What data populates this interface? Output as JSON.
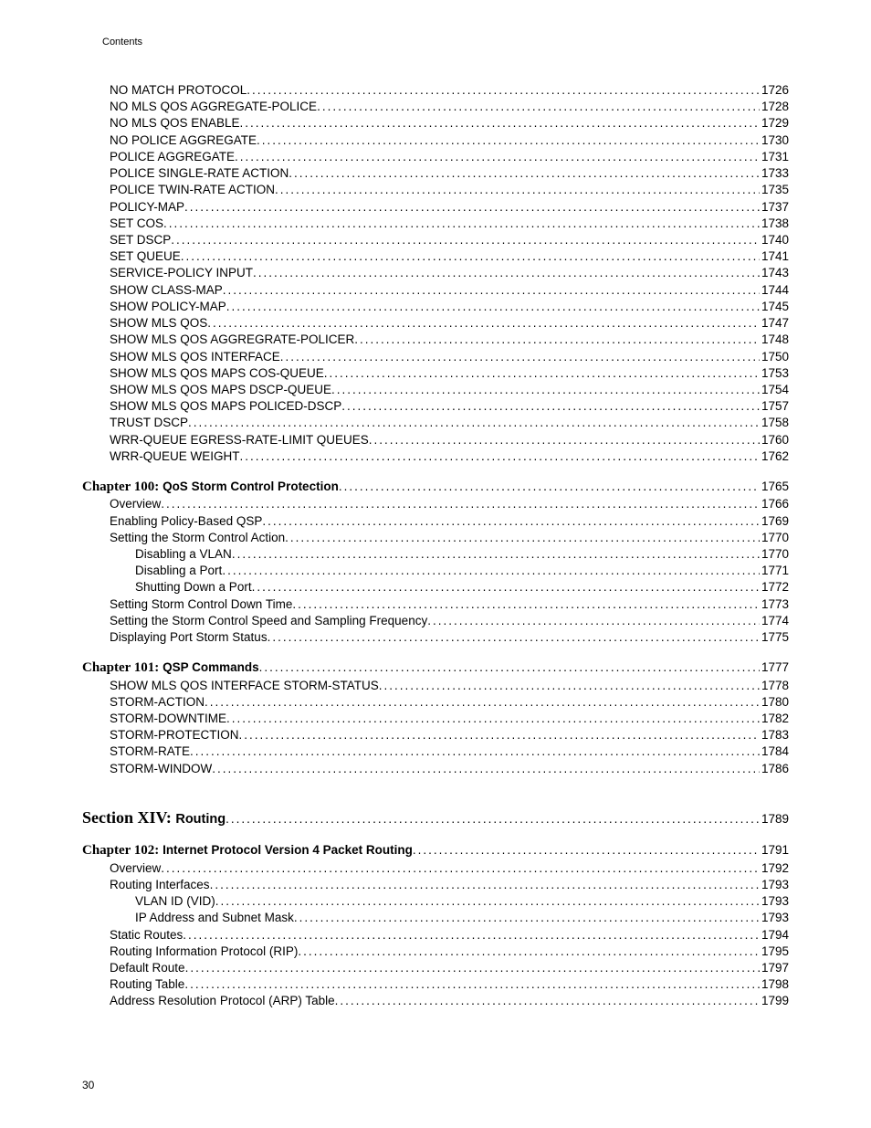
{
  "header": "Contents",
  "page_number": "30",
  "groups": [
    {
      "gap_before": "none",
      "entries": [
        {
          "indent": 1,
          "type": "entry",
          "label": "NO MATCH PROTOCOL",
          "page": "1726"
        },
        {
          "indent": 1,
          "type": "entry",
          "label": "NO MLS QOS AGGREGATE-POLICE",
          "page": "1728"
        },
        {
          "indent": 1,
          "type": "entry",
          "label": "NO MLS QOS ENABLE",
          "page": "1729"
        },
        {
          "indent": 1,
          "type": "entry",
          "label": "NO POLICE AGGREGATE",
          "page": "1730"
        },
        {
          "indent": 1,
          "type": "entry",
          "label": "POLICE AGGREGATE",
          "page": "1731"
        },
        {
          "indent": 1,
          "type": "entry",
          "label": "POLICE SINGLE-RATE ACTION",
          "page": "1733"
        },
        {
          "indent": 1,
          "type": "entry",
          "label": "POLICE TWIN-RATE ACTION",
          "page": "1735"
        },
        {
          "indent": 1,
          "type": "entry",
          "label": "POLICY-MAP",
          "page": "1737"
        },
        {
          "indent": 1,
          "type": "entry",
          "label": "SET COS",
          "page": "1738"
        },
        {
          "indent": 1,
          "type": "entry",
          "label": "SET DSCP",
          "page": "1740"
        },
        {
          "indent": 1,
          "type": "entry",
          "label": "SET QUEUE",
          "page": "1741"
        },
        {
          "indent": 1,
          "type": "entry",
          "label": "SERVICE-POLICY INPUT",
          "page": "1743"
        },
        {
          "indent": 1,
          "type": "entry",
          "label": "SHOW CLASS-MAP",
          "page": "1744"
        },
        {
          "indent": 1,
          "type": "entry",
          "label": "SHOW POLICY-MAP",
          "page": "1745"
        },
        {
          "indent": 1,
          "type": "entry",
          "label": "SHOW MLS QOS",
          "page": "1747"
        },
        {
          "indent": 1,
          "type": "entry",
          "label": "SHOW MLS QOS AGGREGRATE-POLICER",
          "page": "1748"
        },
        {
          "indent": 1,
          "type": "entry",
          "label": "SHOW MLS QOS INTERFACE",
          "page": "1750"
        },
        {
          "indent": 1,
          "type": "entry",
          "label": "SHOW MLS QOS MAPS COS-QUEUE",
          "page": "1753"
        },
        {
          "indent": 1,
          "type": "entry",
          "label": "SHOW MLS QOS MAPS DSCP-QUEUE",
          "page": "1754"
        },
        {
          "indent": 1,
          "type": "entry",
          "label": "SHOW MLS QOS MAPS POLICED-DSCP",
          "page": "1757"
        },
        {
          "indent": 1,
          "type": "entry",
          "label": "TRUST DSCP",
          "page": "1758"
        },
        {
          "indent": 1,
          "type": "entry",
          "label": "WRR-QUEUE EGRESS-RATE-LIMIT QUEUES",
          "page": "1760"
        },
        {
          "indent": 1,
          "type": "entry",
          "label": "WRR-QUEUE WEIGHT",
          "page": "1762"
        }
      ]
    },
    {
      "gap_before": "small",
      "entries": [
        {
          "indent": 0,
          "type": "chapter",
          "prefix": "Chapter 100: ",
          "title": "QoS Storm Control Protection ",
          "page": "1765"
        },
        {
          "indent": 1,
          "type": "entry",
          "label": "Overview",
          "page": "1766"
        },
        {
          "indent": 1,
          "type": "entry",
          "label": "Enabling Policy-Based QSP",
          "page": "1769"
        },
        {
          "indent": 1,
          "type": "entry",
          "label": "Setting the Storm Control Action",
          "page": "1770"
        },
        {
          "indent": 2,
          "type": "entry",
          "label": "Disabling a VLAN",
          "page": "1770"
        },
        {
          "indent": 2,
          "type": "entry",
          "label": "Disabling a Port",
          "page": "1771"
        },
        {
          "indent": 2,
          "type": "entry",
          "label": "Shutting Down a Port",
          "page": "1772"
        },
        {
          "indent": 1,
          "type": "entry",
          "label": "Setting Storm Control Down Time",
          "page": "1773"
        },
        {
          "indent": 1,
          "type": "entry",
          "label": "Setting the Storm Control Speed and Sampling Frequency",
          "page": "1774"
        },
        {
          "indent": 1,
          "type": "entry",
          "label": "Displaying Port Storm Status",
          "page": "1775"
        }
      ]
    },
    {
      "gap_before": "small",
      "entries": [
        {
          "indent": 0,
          "type": "chapter",
          "prefix": "Chapter 101: ",
          "title": "QSP Commands ",
          "page": "1777"
        },
        {
          "indent": 1,
          "type": "entry",
          "label": "SHOW MLS QOS INTERFACE STORM-STATUS",
          "page": "1778"
        },
        {
          "indent": 1,
          "type": "entry",
          "label": "STORM-ACTION",
          "page": "1780"
        },
        {
          "indent": 1,
          "type": "entry",
          "label": "STORM-DOWNTIME",
          "page": "1782"
        },
        {
          "indent": 1,
          "type": "entry",
          "label": "STORM-PROTECTION",
          "page": "1783"
        },
        {
          "indent": 1,
          "type": "entry",
          "label": "STORM-RATE",
          "page": "1784"
        },
        {
          "indent": 1,
          "type": "entry",
          "label": "STORM-WINDOW",
          "page": "1786"
        }
      ]
    },
    {
      "gap_before": "big",
      "entries": [
        {
          "indent": 0,
          "type": "section",
          "prefix": "Section XIV: ",
          "title": "Routing ",
          "page": "1789"
        }
      ]
    },
    {
      "gap_before": "small",
      "entries": [
        {
          "indent": 0,
          "type": "chapter",
          "prefix": "Chapter 102: ",
          "title": "Internet Protocol Version 4 Packet Routing ",
          "page": "1791"
        },
        {
          "indent": 1,
          "type": "entry",
          "label": "Overview",
          "page": "1792"
        },
        {
          "indent": 1,
          "type": "entry",
          "label": "Routing Interfaces",
          "page": "1793"
        },
        {
          "indent": 2,
          "type": "entry",
          "label": "VLAN ID (VID)",
          "page": "1793"
        },
        {
          "indent": 2,
          "type": "entry",
          "label": "IP Address and Subnet Mask",
          "page": "1793"
        },
        {
          "indent": 1,
          "type": "entry",
          "label": "Static Routes",
          "page": "1794"
        },
        {
          "indent": 1,
          "type": "entry",
          "label": "Routing Information Protocol (RIP)",
          "page": "1795"
        },
        {
          "indent": 1,
          "type": "entry",
          "label": "Default Route",
          "page": "1797"
        },
        {
          "indent": 1,
          "type": "entry",
          "label": "Routing Table",
          "page": "1798"
        },
        {
          "indent": 1,
          "type": "entry",
          "label": "Address Resolution Protocol (ARP) Table",
          "page": "1799"
        }
      ]
    }
  ]
}
